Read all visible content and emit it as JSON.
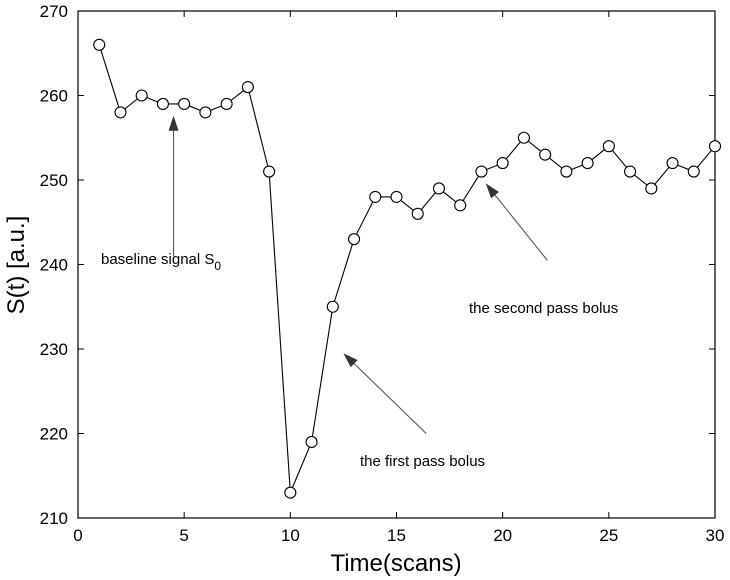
{
  "chart_data": {
    "type": "line",
    "xlabel": "Time(scans)",
    "ylabel": "S(t) [a.u.]",
    "xlim": [
      0,
      30
    ],
    "ylim": [
      210,
      270
    ],
    "x_ticks": [
      "0",
      "5",
      "10",
      "15",
      "20",
      "25",
      "30"
    ],
    "y_ticks": [
      "210",
      "220",
      "230",
      "240",
      "250",
      "260",
      "270"
    ],
    "grid": false,
    "marker": "open-circle",
    "line_color": "#000000",
    "series": [
      {
        "x": [
          1,
          2,
          3,
          4,
          5,
          6,
          7,
          8,
          9,
          10,
          11,
          12,
          13,
          14,
          15,
          16,
          17,
          18,
          19,
          20,
          21,
          22,
          23,
          24,
          25,
          26,
          27,
          28,
          29,
          30
        ],
        "y": [
          266,
          258,
          260,
          259,
          259,
          258,
          259,
          261,
          251,
          213,
          219,
          235,
          243,
          248,
          248,
          246,
          249,
          247,
          251,
          252,
          255,
          253,
          251,
          252,
          254,
          251,
          249,
          252,
          251,
          254
        ]
      }
    ],
    "annotations": [
      {
        "text": "baseline signal S",
        "subscript": "0",
        "arrow_from": [
          4.5,
          241
        ],
        "arrow_to": [
          4.5,
          257.6
        ]
      },
      {
        "text": "the first pass bolus",
        "arrow_from": [
          16.4,
          220
        ],
        "arrow_to": [
          12.5,
          229.5
        ]
      },
      {
        "text": "the second pass bolus",
        "arrow_from": [
          22.1,
          240.5
        ],
        "arrow_to": [
          19.2,
          249.6
        ]
      }
    ]
  }
}
